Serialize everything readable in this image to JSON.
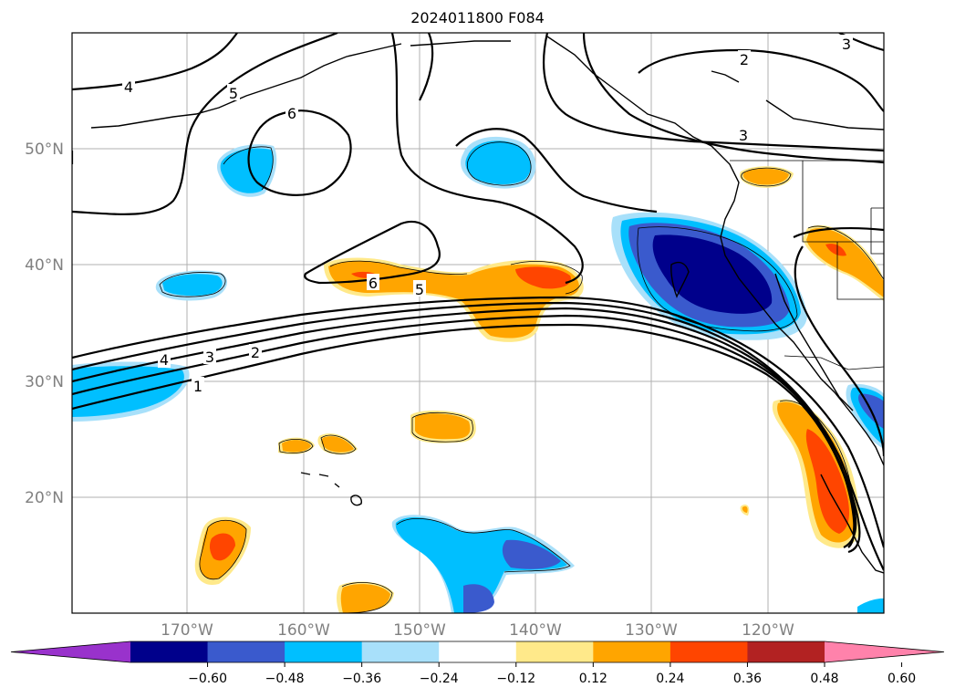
{
  "title": "2024011800 F084",
  "map": {
    "lat_labels": [
      "50°N",
      "40°N",
      "30°N",
      "20°N"
    ],
    "lon_labels": [
      "170°W",
      "160°W",
      "150°W",
      "140°W",
      "130°W",
      "120°W"
    ],
    "contour_labels": [
      "4",
      "5",
      "6",
      "2",
      "3",
      "6",
      "5",
      "4",
      "3",
      "2",
      "1",
      "3"
    ]
  },
  "colorbar": {
    "ticks": [
      "−0.60",
      "−0.48",
      "−0.36",
      "−0.24",
      "−0.12",
      "0.12",
      "0.24",
      "0.36",
      "0.48",
      "0.60"
    ],
    "colors": [
      "#9932cc",
      "#00008b",
      "#3a5acd",
      "#00bfff",
      "#a8e0fa",
      "#ffffff",
      "#ffe98a",
      "#ffa500",
      "#ff4500",
      "#b22222",
      "#ff82ab"
    ]
  }
}
